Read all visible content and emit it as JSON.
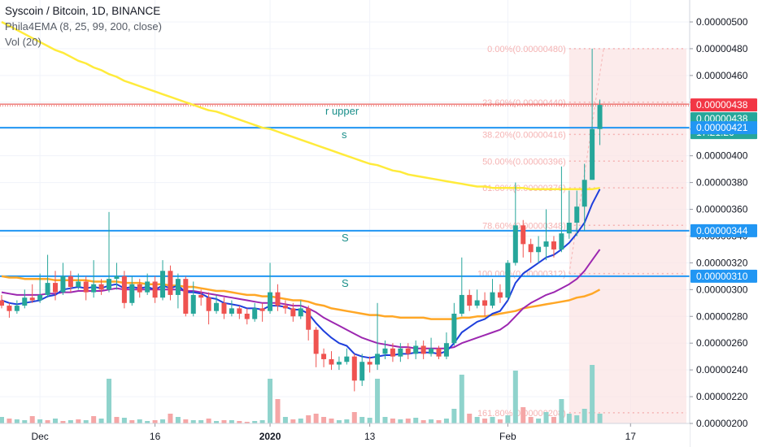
{
  "header": {
    "title": "Syscoin / Bitcoin, 1D, BINANCE",
    "indicator": "Phila4EMA (8, 25, 99, 200, close)",
    "volume": "Vol (20)"
  },
  "chart_data": {
    "type": "candlestick",
    "y_axis_ticks": [
      "0.00000500",
      "0.00000480",
      "0.00000460",
      "0.00000440",
      "0.00000420",
      "0.00000400",
      "0.00000380",
      "0.00000360",
      "0.00000340",
      "0.00000320",
      "0.00000300",
      "0.00000280",
      "0.00000260",
      "0.00000240",
      "0.00000220",
      "0.00000200"
    ],
    "x_axis_labels": [
      {
        "label": "Dec",
        "day": 5
      },
      {
        "label": "16",
        "day": 20
      },
      {
        "label": "2020",
        "day": 35
      },
      {
        "label": "13",
        "day": 48
      },
      {
        "label": "Feb",
        "day": 66
      },
      {
        "label": "17",
        "day": 82
      }
    ],
    "ylim": [
      2e-06,
      5.1e-06
    ],
    "horizontal_levels": [
      {
        "price": 4.38e-06,
        "color": "#e53935",
        "label": "r upper",
        "style": "resistance"
      },
      {
        "price": 4.21e-06,
        "color": "#2196f3",
        "label": "s"
      },
      {
        "price": 3.44e-06,
        "color": "#2196f3",
        "label": "S"
      },
      {
        "price": 3.1e-06,
        "color": "#2196f3",
        "label": "S"
      }
    ],
    "price_tags": [
      {
        "price": 4.38e-06,
        "text": "0.00000438",
        "color": "#f23645"
      },
      {
        "price": 4.38e-06,
        "text": "0.00000438",
        "color": "#26a69a",
        "offset": 1
      },
      {
        "text": "17:21:26",
        "color": "#26a69a",
        "offset": 2
      },
      {
        "price": 4.21e-06,
        "text": "0.00000421",
        "color": "#2196f3"
      },
      {
        "price": 3.44e-06,
        "text": "0.00000344",
        "color": "#2196f3"
      },
      {
        "price": 3.1e-06,
        "text": "0.00000310",
        "color": "#2196f3"
      }
    ],
    "fibonacci": {
      "start_day": 74,
      "end_day": 94,
      "levels": [
        {
          "ratio": "0.00%",
          "price": 4.8e-06,
          "text": "0.00%(0.00000480)"
        },
        {
          "ratio": "23.60%",
          "price": 4.4e-06,
          "text": "23.60%(0.00000440)"
        },
        {
          "ratio": "38.20%",
          "price": 4.16e-06,
          "text": "38.20%(0.00000416)"
        },
        {
          "ratio": "50.00%",
          "price": 3.96e-06,
          "text": "50.00%(0.00000396)"
        },
        {
          "ratio": "61.80%",
          "price": 3.76e-06,
          "text": "61.80%(0.00000376)"
        },
        {
          "ratio": "78.60%",
          "price": 3.48e-06,
          "text": "78.60%(0.00000348)"
        },
        {
          "ratio": "100.00%",
          "price": 3.12e-06,
          "text": "100.00%(0.00000312)"
        },
        {
          "ratio": "161.80%",
          "price": 2.08e-06,
          "text": "161.80%(0.00000208)"
        }
      ]
    },
    "candles": [
      [
        2.92,
        2.88,
        2.96,
        2.86
      ],
      [
        2.88,
        2.84,
        2.9,
        2.79
      ],
      [
        2.84,
        2.88,
        2.92,
        2.82
      ],
      [
        2.88,
        2.94,
        3.0,
        2.86
      ],
      [
        2.94,
        2.92,
        3.04,
        2.9
      ],
      [
        2.92,
        2.96,
        3.12,
        2.9
      ],
      [
        2.96,
        3.05,
        3.26,
        2.94
      ],
      [
        3.05,
        2.98,
        3.14,
        2.92
      ],
      [
        2.98,
        3.1,
        3.2,
        2.96
      ],
      [
        3.1,
        3.02,
        3.14,
        2.98
      ],
      [
        3.02,
        3.06,
        3.12,
        3.0
      ],
      [
        3.06,
        2.98,
        3.1,
        2.92
      ],
      [
        2.98,
        3.04,
        3.22,
        2.94
      ],
      [
        3.04,
        3.0,
        3.08,
        2.96
      ],
      [
        3.0,
        3.08,
        3.58,
        2.98
      ],
      [
        3.08,
        3.1,
        3.2,
        3.0
      ],
      [
        3.1,
        2.9,
        3.14,
        2.86
      ],
      [
        2.9,
        3.04,
        3.1,
        2.88
      ],
      [
        3.04,
        2.98,
        3.08,
        2.94
      ],
      [
        2.98,
        3.06,
        3.12,
        2.96
      ],
      [
        3.06,
        2.94,
        3.1,
        2.9
      ],
      [
        2.94,
        3.14,
        3.22,
        2.92
      ],
      [
        3.14,
        2.96,
        3.18,
        2.92
      ],
      [
        2.96,
        3.08,
        3.12,
        2.86
      ],
      [
        3.08,
        2.82,
        3.1,
        2.8
      ],
      [
        2.82,
        2.96,
        3.06,
        2.8
      ],
      [
        2.96,
        2.94,
        3.0,
        2.88
      ],
      [
        2.94,
        2.84,
        2.98,
        2.74
      ],
      [
        2.84,
        2.9,
        2.96,
        2.82
      ],
      [
        2.9,
        2.82,
        2.94,
        2.78
      ],
      [
        2.82,
        2.86,
        2.92,
        2.8
      ],
      [
        2.86,
        2.82,
        2.88,
        2.78
      ],
      [
        2.82,
        2.78,
        2.86,
        2.74
      ],
      [
        2.78,
        2.86,
        2.9,
        2.76
      ],
      [
        2.86,
        2.84,
        2.9,
        2.76
      ],
      [
        2.84,
        2.98,
        3.2,
        2.82
      ],
      [
        2.98,
        2.88,
        3.04,
        2.84
      ],
      [
        2.88,
        2.86,
        2.92,
        2.82
      ],
      [
        2.86,
        2.8,
        2.9,
        2.76
      ],
      [
        2.8,
        2.86,
        2.92,
        2.78
      ],
      [
        2.86,
        2.7,
        2.88,
        2.62
      ],
      [
        2.7,
        2.52,
        2.72,
        2.42
      ],
      [
        2.52,
        2.48,
        2.56,
        2.42
      ],
      [
        2.48,
        2.44,
        2.54,
        2.4
      ],
      [
        2.44,
        2.46,
        2.5,
        2.4
      ],
      [
        2.46,
        2.5,
        2.56,
        2.44
      ],
      [
        2.5,
        2.32,
        2.52,
        2.24
      ],
      [
        2.32,
        2.46,
        2.52,
        2.28
      ],
      [
        2.46,
        2.44,
        2.5,
        2.38
      ],
      [
        2.44,
        2.52,
        2.9,
        2.4
      ],
      [
        2.52,
        2.56,
        2.62,
        2.48
      ],
      [
        2.56,
        2.5,
        2.6,
        2.46
      ],
      [
        2.5,
        2.56,
        2.6,
        2.46
      ],
      [
        2.56,
        2.52,
        2.6,
        2.48
      ],
      [
        2.52,
        2.58,
        2.62,
        2.48
      ],
      [
        2.58,
        2.52,
        2.62,
        2.48
      ],
      [
        2.52,
        2.56,
        2.64,
        2.5
      ],
      [
        2.56,
        2.5,
        2.58,
        2.48
      ],
      [
        2.5,
        2.6,
        2.68,
        2.48
      ],
      [
        2.6,
        2.82,
        2.9,
        2.58
      ],
      [
        2.82,
        2.96,
        3.24,
        2.8
      ],
      [
        2.96,
        2.88,
        3.0,
        2.84
      ],
      [
        2.88,
        2.92,
        3.0,
        2.86
      ],
      [
        2.92,
        2.88,
        2.98,
        2.8
      ],
      [
        2.88,
        2.98,
        3.08,
        2.86
      ],
      [
        2.98,
        2.94,
        3.04,
        2.9
      ],
      [
        2.94,
        3.2,
        3.22,
        2.92
      ],
      [
        3.2,
        3.48,
        3.8,
        3.18
      ],
      [
        3.48,
        3.34,
        3.52,
        3.24
      ],
      [
        3.34,
        3.28,
        3.38,
        3.2
      ],
      [
        3.28,
        3.32,
        3.4,
        3.2
      ],
      [
        3.32,
        3.36,
        3.6,
        3.22
      ],
      [
        3.36,
        3.3,
        3.4,
        3.24
      ],
      [
        3.3,
        3.42,
        3.92,
        3.28
      ],
      [
        3.42,
        3.5,
        3.74,
        3.38
      ],
      [
        3.5,
        3.62,
        3.74,
        3.4
      ],
      [
        3.62,
        3.82,
        3.94,
        3.44
      ],
      [
        3.82,
        4.2,
        4.8,
        3.82
      ],
      [
        4.2,
        4.38,
        4.42,
        4.08
      ]
    ],
    "volumes": [
      [
        8,
        "up"
      ],
      [
        6,
        "dn"
      ],
      [
        5,
        "up"
      ],
      [
        4,
        "up"
      ],
      [
        9,
        "dn"
      ],
      [
        5,
        "up"
      ],
      [
        4,
        "dn"
      ],
      [
        6,
        "up"
      ],
      [
        3,
        "dn"
      ],
      [
        4,
        "up"
      ],
      [
        5,
        "dn"
      ],
      [
        4,
        "up"
      ],
      [
        9,
        "dn"
      ],
      [
        6,
        "up"
      ],
      [
        55,
        "up"
      ],
      [
        8,
        "dn"
      ],
      [
        7,
        "up"
      ],
      [
        4,
        "dn"
      ],
      [
        5,
        "up"
      ],
      [
        3,
        "up"
      ],
      [
        4,
        "dn"
      ],
      [
        5,
        "up"
      ],
      [
        12,
        "dn"
      ],
      [
        8,
        "up"
      ],
      [
        5,
        "dn"
      ],
      [
        4,
        "up"
      ],
      [
        4,
        "up"
      ],
      [
        6,
        "dn"
      ],
      [
        3,
        "up"
      ],
      [
        4,
        "dn"
      ],
      [
        4,
        "up"
      ],
      [
        3,
        "dn"
      ],
      [
        2,
        "dn"
      ],
      [
        3,
        "up"
      ],
      [
        4,
        "up"
      ],
      [
        55,
        "up"
      ],
      [
        30,
        "dn"
      ],
      [
        8,
        "up"
      ],
      [
        5,
        "dn"
      ],
      [
        6,
        "up"
      ],
      [
        10,
        "dn"
      ],
      [
        12,
        "dn"
      ],
      [
        8,
        "dn"
      ],
      [
        6,
        "dn"
      ],
      [
        4,
        "up"
      ],
      [
        5,
        "up"
      ],
      [
        14,
        "dn"
      ],
      [
        8,
        "up"
      ],
      [
        7,
        "up"
      ],
      [
        55,
        "up"
      ],
      [
        8,
        "up"
      ],
      [
        6,
        "dn"
      ],
      [
        5,
        "up"
      ],
      [
        6,
        "dn"
      ],
      [
        7,
        "up"
      ],
      [
        4,
        "dn"
      ],
      [
        5,
        "up"
      ],
      [
        4,
        "dn"
      ],
      [
        6,
        "up"
      ],
      [
        18,
        "up"
      ],
      [
        60,
        "up"
      ],
      [
        12,
        "dn"
      ],
      [
        8,
        "up"
      ],
      [
        6,
        "dn"
      ],
      [
        8,
        "up"
      ],
      [
        5,
        "dn"
      ],
      [
        10,
        "up"
      ],
      [
        65,
        "up"
      ],
      [
        20,
        "dn"
      ],
      [
        8,
        "dn"
      ],
      [
        6,
        "up"
      ],
      [
        14,
        "up"
      ],
      [
        8,
        "dn"
      ],
      [
        30,
        "up"
      ],
      [
        12,
        "up"
      ],
      [
        10,
        "up"
      ],
      [
        18,
        "up"
      ],
      [
        72,
        "up"
      ],
      [
        12,
        "up"
      ]
    ],
    "ema8": [
      2.92,
      2.9,
      2.89,
      2.9,
      2.91,
      2.92,
      2.95,
      2.96,
      3.0,
      3.01,
      3.02,
      3.01,
      3.02,
      3.01,
      3.03,
      3.04,
      3.01,
      3.02,
      3.01,
      3.02,
      3.0,
      3.03,
      3.01,
      3.03,
      2.98,
      2.98,
      2.97,
      2.94,
      2.93,
      2.9,
      2.89,
      2.88,
      2.86,
      2.86,
      2.85,
      2.88,
      2.88,
      2.87,
      2.85,
      2.85,
      2.82,
      2.75,
      2.69,
      2.64,
      2.6,
      2.58,
      2.52,
      2.5,
      2.49,
      2.5,
      2.51,
      2.51,
      2.52,
      2.52,
      2.53,
      2.53,
      2.53,
      2.52,
      2.54,
      2.6,
      2.68,
      2.72,
      2.76,
      2.78,
      2.82,
      2.84,
      2.92,
      3.05,
      3.12,
      3.16,
      3.2,
      3.24,
      3.26,
      3.3,
      3.35,
      3.42,
      3.5,
      3.64,
      3.75
    ],
    "ema25": [
      2.98,
      2.97,
      2.96,
      2.96,
      2.96,
      2.96,
      2.97,
      2.97,
      2.98,
      2.98,
      2.99,
      2.99,
      2.99,
      2.99,
      3.0,
      3.01,
      3.0,
      3.0,
      3.0,
      3.0,
      3.0,
      3.0,
      3.0,
      3.0,
      2.99,
      2.99,
      2.98,
      2.97,
      2.96,
      2.95,
      2.94,
      2.93,
      2.92,
      2.91,
      2.9,
      2.9,
      2.9,
      2.89,
      2.88,
      2.88,
      2.86,
      2.83,
      2.79,
      2.76,
      2.73,
      2.7,
      2.67,
      2.64,
      2.62,
      2.6,
      2.59,
      2.58,
      2.57,
      2.57,
      2.56,
      2.56,
      2.56,
      2.56,
      2.56,
      2.57,
      2.6,
      2.62,
      2.64,
      2.66,
      2.68,
      2.7,
      2.74,
      2.8,
      2.86,
      2.9,
      2.93,
      2.96,
      2.98,
      3.01,
      3.04,
      3.08,
      3.14,
      3.22,
      3.3
    ],
    "ema99": [
      3.1,
      3.09,
      3.09,
      3.08,
      3.08,
      3.08,
      3.08,
      3.07,
      3.07,
      3.07,
      3.07,
      3.07,
      3.06,
      3.06,
      3.06,
      3.06,
      3.05,
      3.05,
      3.05,
      3.04,
      3.04,
      3.04,
      3.03,
      3.03,
      3.02,
      3.02,
      3.01,
      3.0,
      2.99,
      2.99,
      2.98,
      2.97,
      2.96,
      2.96,
      2.95,
      2.95,
      2.94,
      2.93,
      2.92,
      2.92,
      2.91,
      2.89,
      2.88,
      2.86,
      2.85,
      2.84,
      2.83,
      2.82,
      2.81,
      2.81,
      2.8,
      2.8,
      2.79,
      2.79,
      2.79,
      2.79,
      2.78,
      2.78,
      2.78,
      2.78,
      2.79,
      2.79,
      2.8,
      2.8,
      2.81,
      2.82,
      2.83,
      2.84,
      2.86,
      2.87,
      2.88,
      2.89,
      2.9,
      2.91,
      2.92,
      2.94,
      2.95,
      2.97,
      3.0
    ],
    "ema200": [
      5.0,
      4.97,
      4.94,
      4.91,
      4.88,
      4.85,
      4.82,
      4.79,
      4.77,
      4.74,
      4.71,
      4.69,
      4.66,
      4.64,
      4.61,
      4.59,
      4.56,
      4.54,
      4.52,
      4.5,
      4.48,
      4.46,
      4.44,
      4.42,
      4.4,
      4.38,
      4.36,
      4.34,
      4.33,
      4.31,
      4.29,
      4.27,
      4.25,
      4.23,
      4.21,
      4.2,
      4.18,
      4.16,
      4.14,
      4.12,
      4.1,
      4.08,
      4.06,
      4.04,
      4.02,
      4.0,
      3.98,
      3.96,
      3.94,
      3.93,
      3.91,
      3.89,
      3.88,
      3.86,
      3.85,
      3.84,
      3.83,
      3.82,
      3.81,
      3.8,
      3.79,
      3.78,
      3.77,
      3.77,
      3.76,
      3.76,
      3.76,
      3.76,
      3.76,
      3.75,
      3.75,
      3.75,
      3.75,
      3.75,
      3.75,
      3.75,
      3.75,
      3.75,
      3.76
    ]
  }
}
